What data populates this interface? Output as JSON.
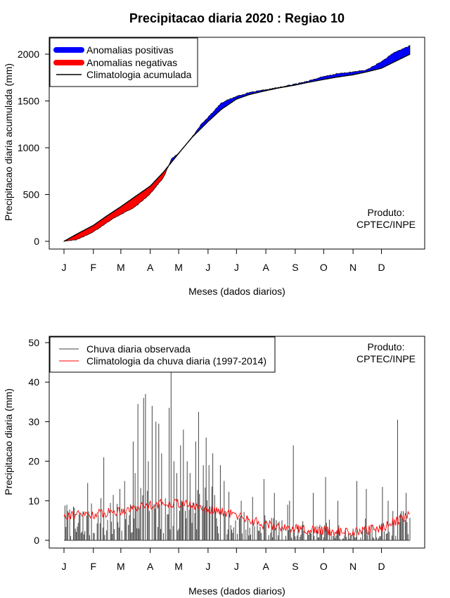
{
  "chart_data": [
    {
      "type": "area",
      "title": "Precipitacao diaria 2020 : Regiao 10",
      "xlabel": "Meses (dados diarios)",
      "ylabel": "Precipitacao diaria acumulada (mm)",
      "xlim": [
        1,
        366
      ],
      "ylim": [
        0,
        2100
      ],
      "yticks": [
        0,
        500,
        1000,
        1500,
        2000
      ],
      "month_labels": [
        "J",
        "F",
        "M",
        "A",
        "M",
        "J",
        "J",
        "A",
        "S",
        "O",
        "N",
        "D"
      ],
      "month_days": [
        1,
        32,
        61,
        92,
        122,
        153,
        183,
        214,
        245,
        275,
        306,
        336
      ],
      "legend": [
        "Anomalias positivas",
        "Anomalias negativas",
        "Climatologia acumulada"
      ],
      "colors": {
        "positive": "#0000ff",
        "negative": "#ff0000",
        "climatology": "#000000"
      },
      "annotation": [
        "Produto:",
        "CPTEC/INPE"
      ],
      "climatology": {
        "x": [
          1,
          15,
          32,
          46,
          61,
          75,
          92,
          106,
          122,
          136,
          153,
          167,
          183,
          197,
          214,
          228,
          245,
          259,
          275,
          289,
          306,
          320,
          336,
          350,
          366
        ],
        "y": [
          0,
          80,
          170,
          270,
          370,
          470,
          590,
          740,
          940,
          1110,
          1280,
          1410,
          1520,
          1570,
          1610,
          1640,
          1670,
          1700,
          1730,
          1755,
          1780,
          1810,
          1850,
          1920,
          2000
        ]
      },
      "observed": {
        "x": [
          1,
          15,
          32,
          46,
          61,
          75,
          80,
          92,
          106,
          115,
          122,
          136,
          145,
          153,
          167,
          183,
          197,
          214,
          228,
          245,
          259,
          275,
          289,
          306,
          320,
          336,
          350,
          366
        ],
        "y": [
          0,
          20,
          100,
          200,
          290,
          360,
          400,
          510,
          680,
          890,
          940,
          1110,
          1240,
          1325,
          1480,
          1550,
          1590,
          1620,
          1645,
          1680,
          1715,
          1760,
          1790,
          1810,
          1830,
          1920,
          2020,
          2090
        ]
      }
    },
    {
      "type": "bar",
      "xlabel": "Meses (dados diarios)",
      "ylabel": "Precipitacao diaria (mm)",
      "xlim": [
        1,
        366
      ],
      "ylim": [
        0,
        50
      ],
      "yticks": [
        0,
        10,
        20,
        30,
        40,
        50
      ],
      "month_labels": [
        "J",
        "F",
        "M",
        "A",
        "M",
        "J",
        "J",
        "A",
        "S",
        "O",
        "N",
        "D"
      ],
      "month_days": [
        1,
        32,
        61,
        92,
        122,
        153,
        183,
        214,
        245,
        275,
        306,
        336
      ],
      "legend": [
        "Chuva diaria observada",
        "Climatologia da chuva diaria (1997-2014)"
      ],
      "colors": {
        "observed": "#444444",
        "climatology": "#ff0000"
      },
      "annotation": [
        "Produto:",
        "CPTEC/INPE"
      ],
      "peaks": {
        "day": [
          4,
          26,
          43,
          60,
          65,
          74,
          76,
          79,
          85,
          87,
          90,
          94,
          98,
          101,
          104,
          112,
          114,
          117,
          120,
          124,
          127,
          131,
          134,
          140,
          143,
          148,
          151,
          154,
          158,
          166,
          170,
          188,
          200,
          212,
          223,
          237,
          239,
          243,
          264,
          277,
          290,
          310,
          320,
          337,
          343,
          353,
          362
        ],
        "value": [
          9,
          14.5,
          21,
          13,
          15,
          25,
          17,
          34.5,
          36,
          37,
          20,
          34,
          30,
          29.5,
          22,
          33.5,
          43,
          20,
          17,
          24,
          28,
          20,
          17,
          25,
          32.5,
          19,
          26,
          19,
          22,
          19,
          15,
          10,
          11,
          15.5,
          12,
          9,
          10,
          24,
          12,
          16,
          10,
          15,
          13,
          13.5,
          10,
          30.5,
          12
        ]
      },
      "climatology_anchors": {
        "day": [
          1,
          31,
          60,
          90,
          121,
          151,
          181,
          212,
          243,
          273,
          304,
          334,
          366
        ],
        "value": [
          6.5,
          6.5,
          7.5,
          9,
          9.5,
          8,
          6.5,
          4,
          3,
          2.5,
          2,
          3,
          6.5
        ]
      }
    }
  ]
}
